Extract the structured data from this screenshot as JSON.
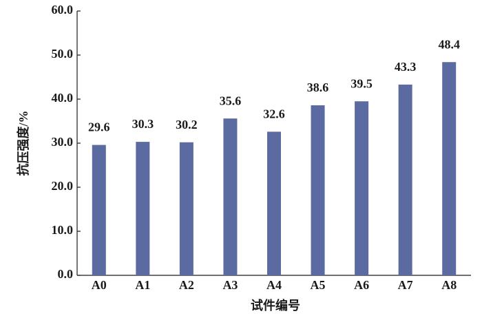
{
  "chart_data": {
    "type": "bar",
    "x_label": "试件编号",
    "y_label": "抗压强度/%",
    "categories": [
      "A0",
      "A1",
      "A2",
      "A3",
      "A4",
      "A5",
      "A6",
      "A7",
      "A8"
    ],
    "values": [
      29.6,
      30.3,
      30.2,
      35.6,
      32.6,
      38.6,
      39.5,
      43.3,
      48.4
    ],
    "color": "#5b6aa1",
    "ylim": [
      0,
      60
    ],
    "yticks": [
      {
        "value": 0,
        "label": "0.0"
      },
      {
        "value": 10,
        "label": "10.0"
      },
      {
        "value": 20,
        "label": "20.0"
      },
      {
        "value": 30,
        "label": "30.0"
      },
      {
        "value": 40,
        "label": "40.0"
      },
      {
        "value": 50,
        "label": "50.0"
      },
      {
        "value": 60,
        "label": "60.0"
      }
    ],
    "grid": false
  }
}
